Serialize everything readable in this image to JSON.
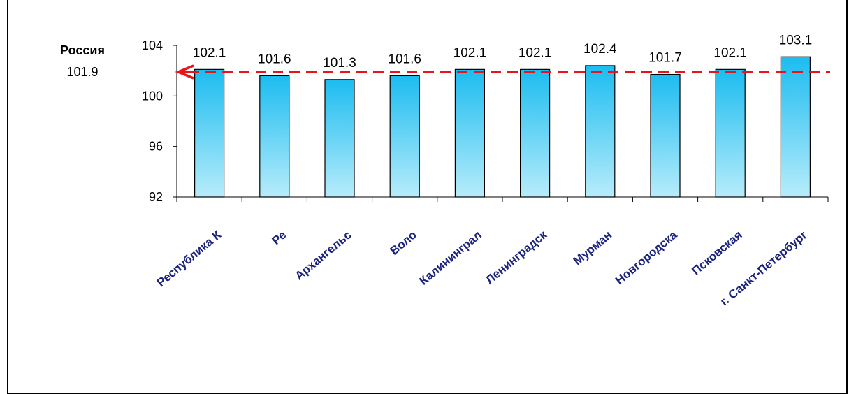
{
  "chart_data": {
    "type": "bar",
    "categories": [
      "Республика К",
      "Ре",
      "Архангельс",
      "Воло",
      "Калининграл",
      "Ленинградск",
      "Мурман",
      "Новгородска",
      "Псковская",
      "г. Санкт-Петербург"
    ],
    "values": [
      102.1,
      101.6,
      101.3,
      101.6,
      102.1,
      102.1,
      102.4,
      101.7,
      102.1,
      103.1
    ],
    "data_labels": [
      "102.1",
      "101.6",
      "101.3",
      "101.6",
      "102.1",
      "102.1",
      "102.4",
      "101.7",
      "102.1",
      "103.1"
    ],
    "yticks": [
      "104",
      "100",
      "96",
      "92"
    ],
    "ylim": [
      92,
      104
    ],
    "title": "",
    "xlabel": "",
    "ylabel": "",
    "reference": {
      "label": "Россия",
      "value": 101.9,
      "value_label": "101.9",
      "color": "#e8141a"
    },
    "colors": {
      "bar_top": "#1cbcf0",
      "bar_bottom": "#b7ecfb",
      "bar_edge": "#000000",
      "category_text": "#1a237e"
    },
    "grid": false,
    "legend": "none"
  }
}
